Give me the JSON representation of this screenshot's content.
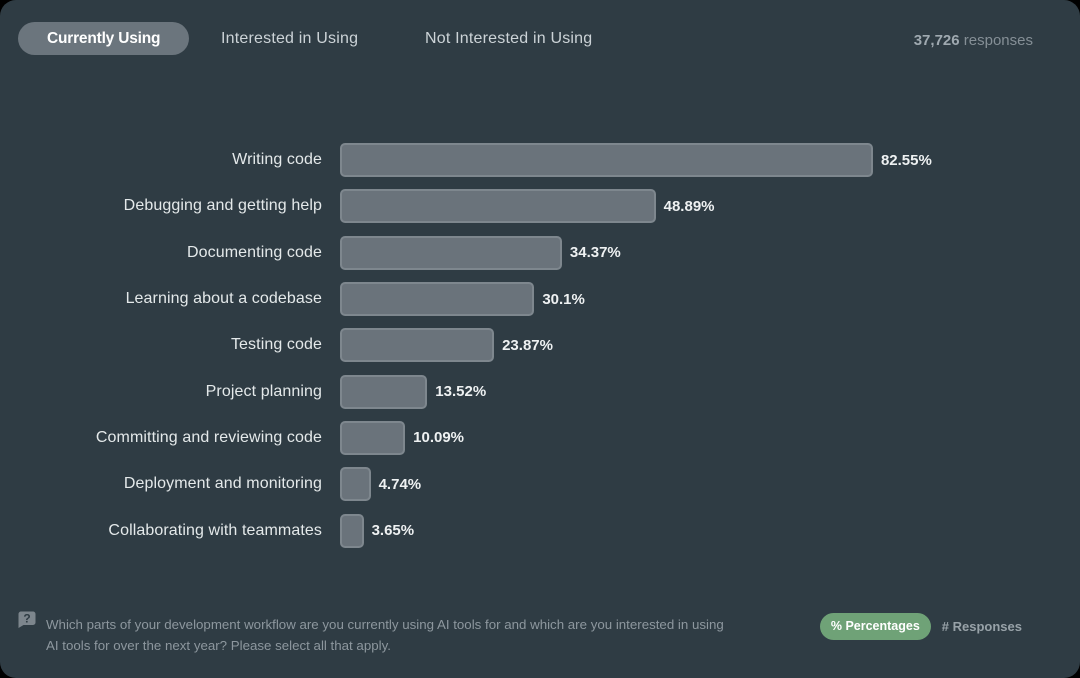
{
  "page": {
    "background": "#2f3c44"
  },
  "tabs": {
    "items": [
      {
        "label": "Currently Using",
        "active": true
      },
      {
        "label": "Interested in Using",
        "active": false
      },
      {
        "label": "Not Interested in Using",
        "active": false
      }
    ]
  },
  "responses": {
    "count": "37,726",
    "label": "responses"
  },
  "chart_data": {
    "type": "bar",
    "orientation": "horizontal",
    "categories": [
      "Writing code",
      "Debugging and getting help",
      "Documenting code",
      "Learning about a codebase",
      "Testing code",
      "Project planning",
      "Committing and reviewing code",
      "Deployment and monitoring",
      "Collaborating with teammates"
    ],
    "values": [
      82.55,
      48.89,
      34.37,
      30.1,
      23.87,
      13.52,
      10.09,
      4.74,
      3.65
    ],
    "value_labels": [
      "82.55%",
      "48.89%",
      "34.37%",
      "30.1%",
      "23.87%",
      "13.52%",
      "10.09%",
      "4.74%",
      "3.65%"
    ],
    "xlim": [
      0,
      100
    ],
    "grid": false,
    "legend": "none",
    "bar_color": "#6a737b",
    "bar_border_color": "#7e878e"
  },
  "footer": {
    "question": "Which parts of your development workflow are you currently using AI tools for and which are you interested in using AI tools for over the next year? Please select all that apply.",
    "help_icon": "question-bubble-icon",
    "toggle": {
      "percentages_label": "% Percentages",
      "responses_label": "# Responses",
      "active": "percentages",
      "accent_color": "#6fa277"
    }
  }
}
